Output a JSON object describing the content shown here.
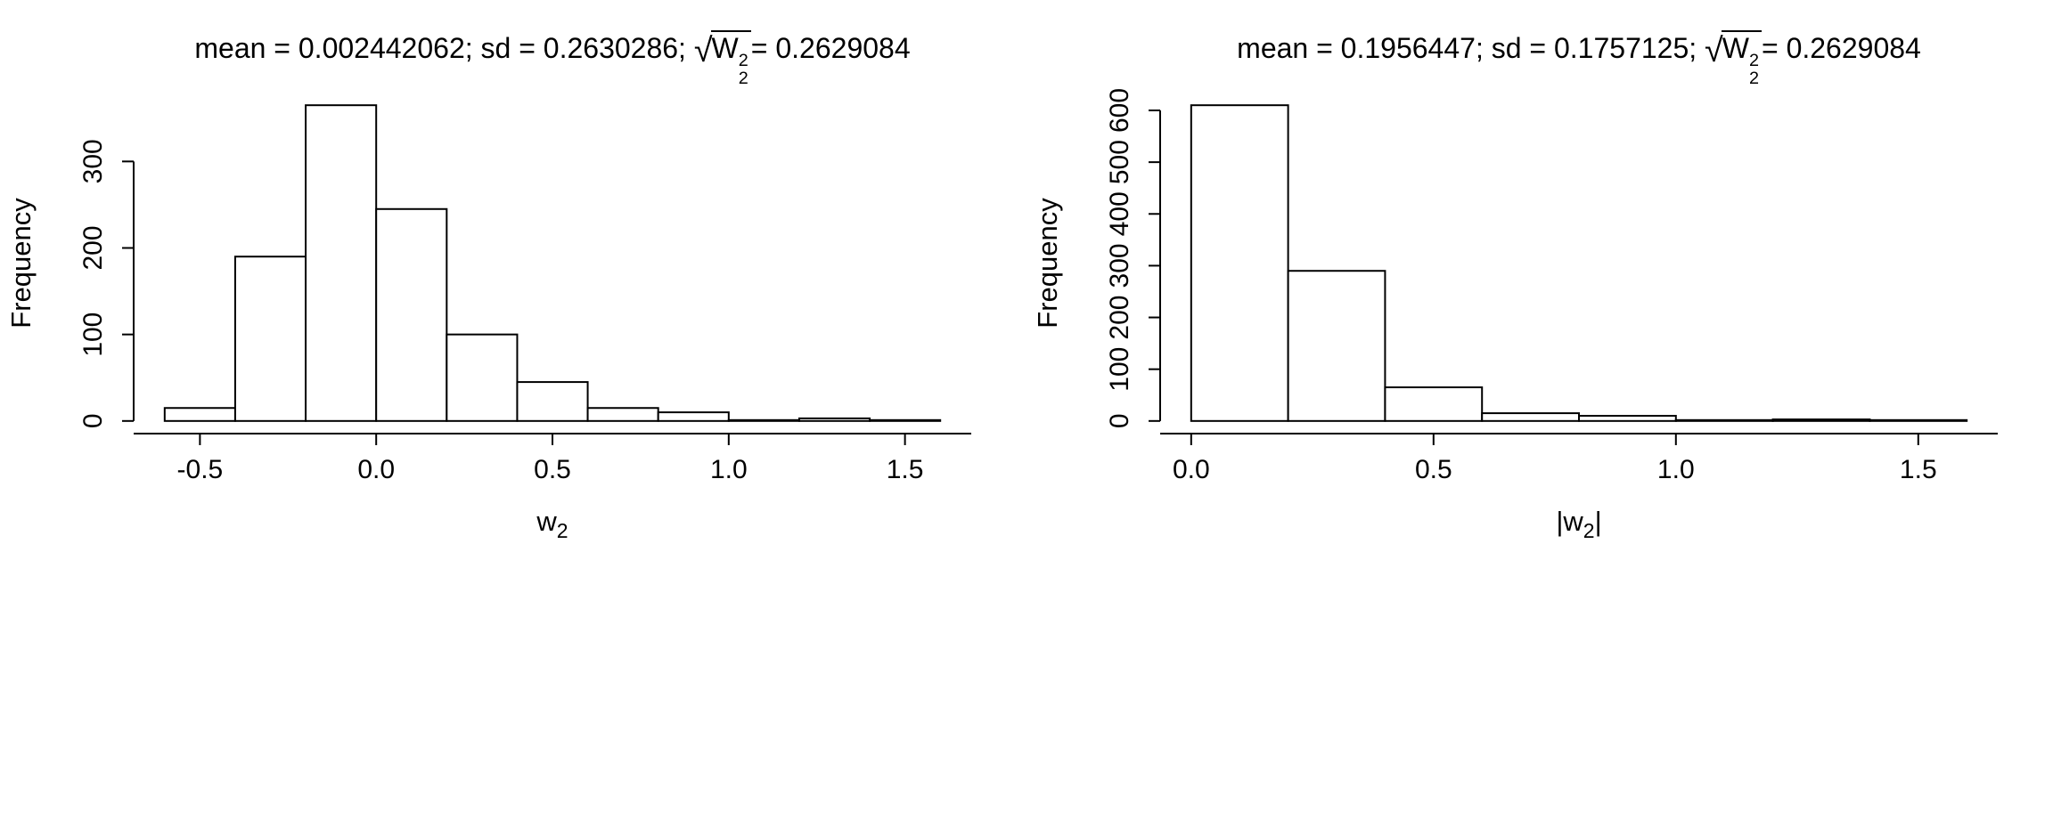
{
  "colors": {
    "foreground": "#000000",
    "background": "#ffffff"
  },
  "chart_data": [
    {
      "type": "bar",
      "variant": "histogram",
      "title_prefix": "mean = 0.002442062; sd = 0.2630286; ",
      "radical": "√",
      "radicand_base": "W",
      "radicand_sup": "2",
      "radicand_sub": "2",
      "title_suffix": "= 0.2629084",
      "xlabel": {
        "pre": "",
        "base": "w",
        "sub": "2",
        "post": ""
      },
      "ylabel": "Frequency",
      "bin_start": -0.6,
      "bin_width": 0.2,
      "counts": [
        15,
        190,
        365,
        245,
        100,
        45,
        15,
        10,
        1,
        3,
        1
      ],
      "x_ticks": [
        -0.5,
        0.0,
        0.5,
        1.0,
        1.5
      ],
      "x_tick_labels": [
        "-0.5",
        "0.0",
        "0.5",
        "1.0",
        "1.5"
      ],
      "y_ticks": [
        0,
        100,
        200,
        300
      ],
      "y_tick_labels": [
        "0",
        "100",
        "200",
        "300"
      ],
      "xlim": [
        -0.6,
        1.6
      ],
      "ylim": [
        0,
        365
      ],
      "grid": false,
      "legend": false,
      "bar_fill": "#ffffff",
      "bar_stroke": "#000000"
    },
    {
      "type": "bar",
      "variant": "histogram",
      "title_prefix": "mean = 0.1956447; sd = 0.1757125; ",
      "radical": "√",
      "radicand_base": "W",
      "radicand_sup": "2",
      "radicand_sub": "2",
      "title_suffix": "= 0.2629084",
      "xlabel": {
        "pre": "|",
        "base": "w",
        "sub": "2",
        "post": "|"
      },
      "ylabel": "Frequency",
      "bin_start": 0.0,
      "bin_width": 0.2,
      "counts": [
        610,
        290,
        65,
        15,
        10,
        1,
        3,
        1
      ],
      "x_ticks": [
        0.0,
        0.5,
        1.0,
        1.5
      ],
      "x_tick_labels": [
        "0.0",
        "0.5",
        "1.0",
        "1.5"
      ],
      "y_ticks": [
        0,
        100,
        200,
        300,
        400,
        500,
        600
      ],
      "y_tick_labels": [
        "0",
        "100",
        "200",
        "300",
        "400",
        "500",
        "600"
      ],
      "xlim": [
        0.0,
        1.6
      ],
      "ylim": [
        0,
        610
      ],
      "grid": false,
      "legend": false,
      "bar_fill": "#ffffff",
      "bar_stroke": "#000000"
    }
  ]
}
